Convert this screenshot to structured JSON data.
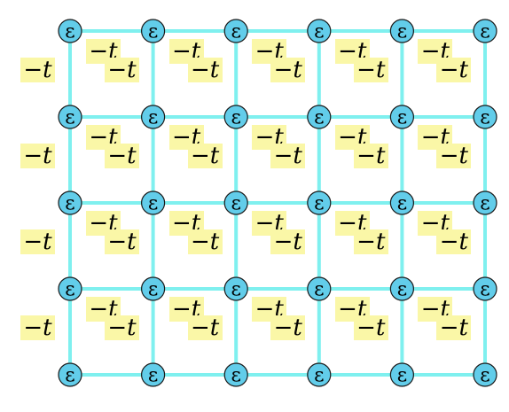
{
  "diagram": {
    "node_label": "ε",
    "hopping_label": "−t",
    "rows": 5,
    "columns": 6,
    "colors": {
      "edge": "#7ff0ef",
      "node_fill": "#62cdea",
      "node_border": "#1a1a1a",
      "label_box": "#faf7a7"
    }
  }
}
